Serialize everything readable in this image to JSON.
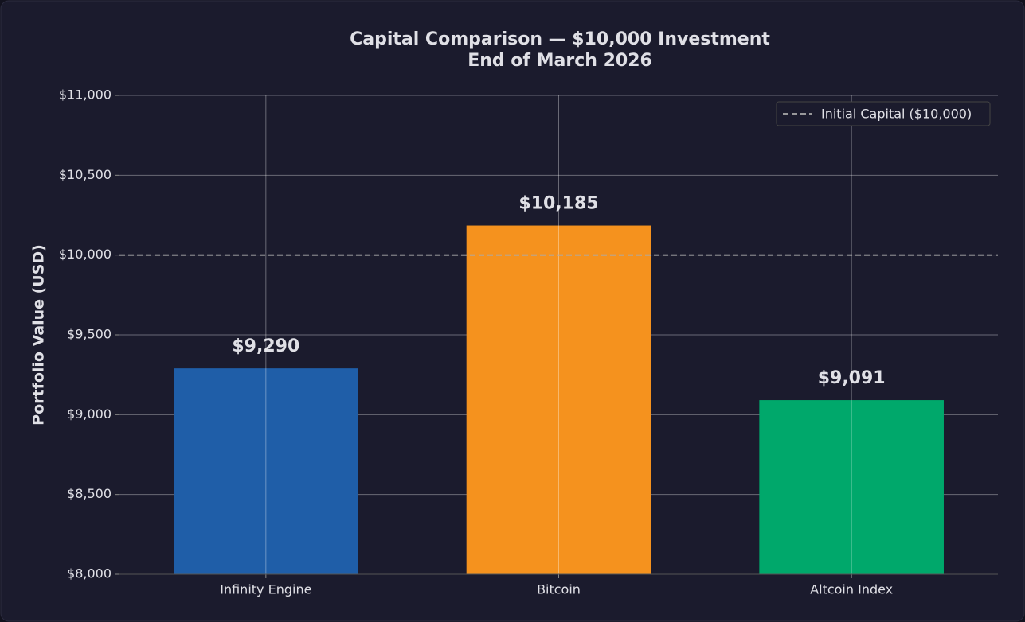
{
  "chart_data": {
    "type": "bar",
    "title": "Capital Comparison — $10,000 Investment",
    "subtitle": "End of March 2026",
    "y_label": "Portfolio Value (USD)",
    "categories": [
      "Infinity Engine",
      "Bitcoin",
      "Altcoin Index"
    ],
    "values": [
      9290,
      10185,
      9091
    ],
    "value_labels": [
      "$9,290",
      "$10,185",
      "$9,091"
    ],
    "colors": [
      "#1f5ea8",
      "#f5921e",
      "#00a86b"
    ],
    "ylim": [
      8000,
      11000
    ],
    "yticks": [
      {
        "value": 8000,
        "label": "$8,000"
      },
      {
        "value": 8500,
        "label": "$8,500"
      },
      {
        "value": 9000,
        "label": "$9,000"
      },
      {
        "value": 9500,
        "label": "$9,500"
      },
      {
        "value": 10000,
        "label": "$10,000"
      },
      {
        "value": 10500,
        "label": "$10,500"
      },
      {
        "value": 11000,
        "label": "$11,000"
      }
    ],
    "reference_line": {
      "value": 10000,
      "label": "Initial Capital ($10,000)",
      "color": "#aaaaaa"
    },
    "legend": "upper right",
    "grid": true
  }
}
